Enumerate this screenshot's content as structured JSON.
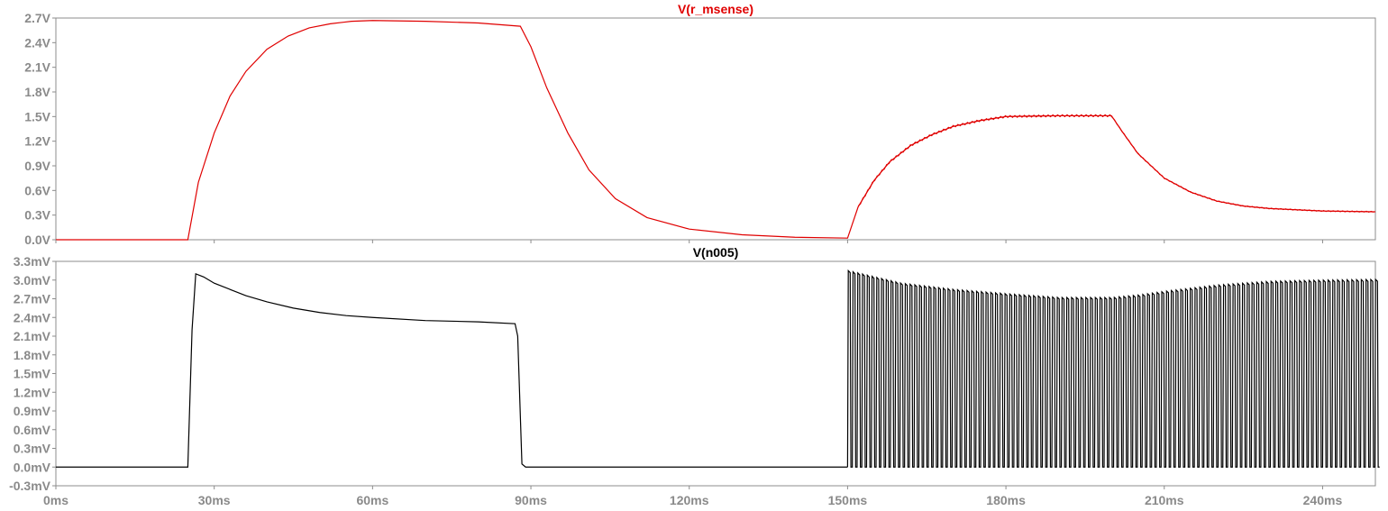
{
  "chart_data": [
    {
      "type": "line",
      "title": "V(r_msense)",
      "title_color": "#e00000",
      "trace_color": "#e00000",
      "yunit": "V",
      "xunit": "ms",
      "ylim": [
        0,
        2.7
      ],
      "xlim": [
        0,
        250
      ],
      "yticks": [
        0.0,
        0.3,
        0.6,
        0.9,
        1.2,
        1.5,
        1.8,
        2.1,
        2.4,
        2.7
      ],
      "ytick_labels": [
        "0.0V",
        "0.3V",
        "0.6V",
        "0.9V",
        "1.2V",
        "1.5V",
        "1.8V",
        "2.1V",
        "2.4V",
        "2.7V"
      ],
      "grid": false,
      "x": [
        0,
        25,
        27,
        30,
        33,
        36,
        40,
        44,
        48,
        52,
        56,
        60,
        70,
        80,
        88,
        90,
        93,
        97,
        101,
        106,
        112,
        120,
        130,
        140,
        150,
        152,
        155,
        158,
        162,
        166,
        170,
        175,
        180,
        190,
        200,
        202,
        205,
        210,
        215,
        220,
        225,
        230,
        240,
        250
      ],
      "y": [
        0,
        0,
        0.7,
        1.3,
        1.75,
        2.05,
        2.32,
        2.48,
        2.58,
        2.63,
        2.66,
        2.67,
        2.66,
        2.64,
        2.6,
        2.35,
        1.85,
        1.3,
        0.85,
        0.5,
        0.27,
        0.13,
        0.06,
        0.03,
        0.02,
        0.4,
        0.72,
        0.95,
        1.15,
        1.28,
        1.38,
        1.45,
        1.5,
        1.51,
        1.51,
        1.32,
        1.05,
        0.75,
        0.58,
        0.47,
        0.41,
        0.38,
        0.35,
        0.34
      ]
    },
    {
      "type": "line",
      "title": "V(n005)",
      "title_color": "#000000",
      "trace_color": "#000000",
      "yunit": "mV",
      "xunit": "ms",
      "ylim": [
        -0.3,
        3.3
      ],
      "xlim": [
        0,
        250
      ],
      "yticks": [
        -0.3,
        0.0,
        0.3,
        0.6,
        0.9,
        1.2,
        1.5,
        1.8,
        2.1,
        2.4,
        2.7,
        3.0,
        3.3
      ],
      "ytick_labels": [
        "-0.3mV",
        "0.0mV",
        "0.3mV",
        "0.6mV",
        "0.9mV",
        "1.2mV",
        "1.5mV",
        "1.8mV",
        "2.1mV",
        "2.4mV",
        "2.7mV",
        "3.0mV",
        "3.3mV"
      ],
      "grid": false,
      "x": [
        0,
        25,
        25.8,
        26.5,
        28,
        30,
        33,
        36,
        40,
        45,
        50,
        55,
        60,
        70,
        80,
        87,
        87.5,
        88.3,
        89,
        150
      ],
      "y": [
        0,
        0,
        2.2,
        3.1,
        3.05,
        2.95,
        2.85,
        2.75,
        2.65,
        2.55,
        2.48,
        2.43,
        2.4,
        2.35,
        2.33,
        2.3,
        2.1,
        0.05,
        0,
        0
      ],
      "pwm": {
        "start": 150,
        "end": 250,
        "period": 0.9,
        "low": 0,
        "envelope_x": [
          150,
          155,
          160,
          170,
          180,
          190,
          200,
          205,
          210,
          220,
          230,
          240,
          250
        ],
        "envelope_y": [
          3.15,
          3.05,
          2.95,
          2.85,
          2.78,
          2.72,
          2.72,
          2.76,
          2.82,
          2.92,
          2.98,
          3.0,
          3.01
        ]
      }
    }
  ],
  "xticks": [
    0,
    30,
    60,
    90,
    120,
    150,
    180,
    210,
    240
  ],
  "xtick_labels": [
    "0ms",
    "30ms",
    "60ms",
    "90ms",
    "120ms",
    "150ms",
    "180ms",
    "210ms",
    "240ms"
  ]
}
